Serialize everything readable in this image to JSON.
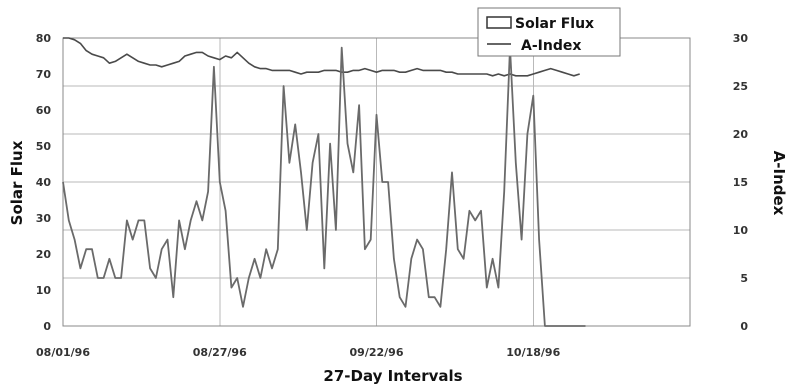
{
  "chart_data": {
    "type": "line",
    "title": "",
    "xlabel": "27-Day Intervals",
    "ylabel": "Solar Flux",
    "y2label": "A-Index",
    "ylim": [
      0,
      80
    ],
    "y2lim": [
      0,
      30
    ],
    "yticks": [
      0,
      10,
      20,
      30,
      40,
      50,
      60,
      70,
      80
    ],
    "y2ticks": [
      0,
      5,
      10,
      15,
      20,
      25,
      30
    ],
    "x_range": [
      0,
      108
    ],
    "x_ticks": [
      {
        "x": 0,
        "label": "08/01/96"
      },
      {
        "x": 27,
        "label": "08/27/96"
      },
      {
        "x": 54,
        "label": "09/22/96"
      },
      {
        "x": 81,
        "label": "10/18/96"
      }
    ],
    "vertical_gridlines_at": [
      0,
      27,
      54,
      81,
      108
    ],
    "grid": true,
    "legend_position": "top-right",
    "series": [
      {
        "name": "Solar Flux",
        "axis": "left",
        "color": "#4a4a4a",
        "x": [
          0,
          1,
          2,
          3,
          4,
          5,
          6,
          7,
          8,
          9,
          10,
          11,
          12,
          13,
          14,
          15,
          16,
          17,
          18,
          19,
          20,
          21,
          22,
          23,
          24,
          25,
          26,
          27,
          28,
          29,
          30,
          31,
          32,
          33,
          34,
          35,
          36,
          37,
          38,
          39,
          40,
          41,
          42,
          43,
          44,
          45,
          46,
          47,
          48,
          49,
          50,
          51,
          52,
          53,
          54,
          55,
          56,
          57,
          58,
          59,
          60,
          61,
          62,
          63,
          64,
          65,
          66,
          67,
          68,
          69,
          70,
          71,
          72,
          73,
          74,
          75,
          76,
          77,
          78,
          79,
          80,
          81,
          82,
          83,
          84,
          85,
          86,
          87,
          88,
          89
        ],
        "values": [
          80,
          80,
          79.5,
          78.5,
          76.5,
          75.5,
          75,
          74.5,
          73,
          73.5,
          74.5,
          75.5,
          74.5,
          73.5,
          73,
          72.5,
          72.5,
          72,
          72.5,
          73,
          73.5,
          75,
          75.5,
          76,
          76,
          75,
          74.5,
          74,
          75,
          74.5,
          76,
          74.5,
          73,
          72,
          71.5,
          71.5,
          71,
          71,
          71,
          71,
          70.5,
          70,
          70.5,
          70.5,
          70.5,
          71,
          71,
          71,
          70.5,
          70.5,
          71,
          71,
          71.5,
          71,
          70.5,
          71,
          71,
          71,
          70.5,
          70.5,
          71,
          71.5,
          71,
          71,
          71,
          71,
          70.5,
          70.5,
          70,
          70,
          70,
          70,
          70,
          70,
          69.5,
          70,
          69.5,
          70,
          69.5,
          69.5,
          69.5,
          70,
          70.5,
          71,
          71.5,
          71,
          70.5,
          70,
          69.5,
          70
        ]
      },
      {
        "name": "A-Index",
        "axis": "right",
        "color": "#6a6a6a",
        "x": [
          0,
          1,
          2,
          3,
          4,
          5,
          6,
          7,
          8,
          9,
          10,
          11,
          12,
          13,
          14,
          15,
          16,
          17,
          18,
          19,
          20,
          21,
          22,
          23,
          24,
          25,
          26,
          27,
          28,
          29,
          30,
          31,
          32,
          33,
          34,
          35,
          36,
          37,
          38,
          39,
          40,
          41,
          42,
          43,
          44,
          45,
          46,
          47,
          48,
          49,
          50,
          51,
          52,
          53,
          54,
          55,
          56,
          57,
          58,
          59,
          60,
          61,
          62,
          63,
          64,
          65,
          66,
          67,
          68,
          69,
          70,
          71,
          72,
          73,
          74,
          75,
          76,
          77,
          78,
          79,
          80,
          81,
          82,
          83,
          84,
          85,
          86,
          87,
          88,
          89,
          90
        ],
        "values": [
          15,
          11,
          9,
          6,
          8,
          8,
          5,
          5,
          7,
          5,
          5,
          11,
          9,
          11,
          11,
          6,
          5,
          8,
          9,
          3,
          11,
          8,
          11,
          13,
          11,
          14,
          27,
          15,
          12,
          4,
          5,
          2,
          5,
          7,
          5,
          8,
          6,
          8,
          25,
          17,
          21,
          16,
          10,
          17,
          20,
          6,
          19,
          10,
          29,
          19,
          16,
          23,
          8,
          9,
          22,
          15,
          15,
          7,
          3,
          2,
          7,
          9,
          8,
          3,
          3,
          2,
          8,
          16,
          8,
          7,
          12,
          11,
          12,
          4,
          7,
          4,
          14,
          29,
          17,
          9,
          20,
          24,
          9,
          0,
          0,
          0,
          0,
          0,
          0,
          0,
          0
        ]
      }
    ]
  }
}
